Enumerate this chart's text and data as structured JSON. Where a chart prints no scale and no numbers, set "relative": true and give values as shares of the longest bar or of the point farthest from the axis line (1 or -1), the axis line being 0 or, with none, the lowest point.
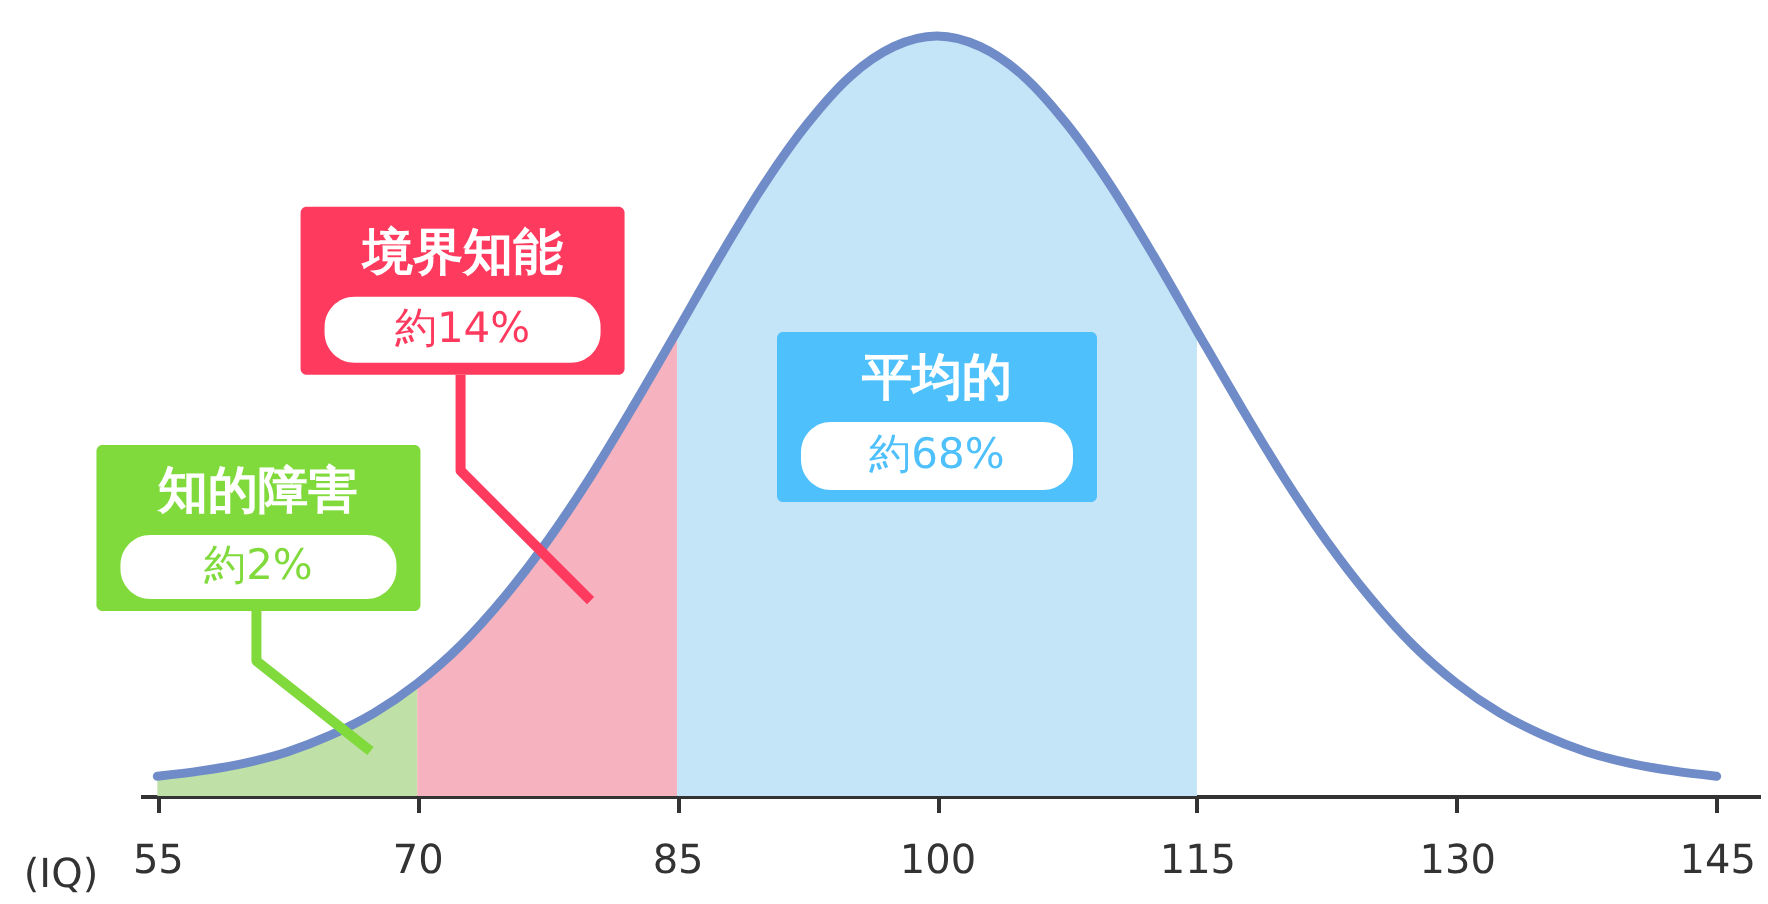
{
  "chart_data": {
    "type": "line",
    "relative": true,
    "xlabel": "(IQ)",
    "xlim": [
      54,
      147.5
    ],
    "xticks": [
      55,
      70,
      85,
      100,
      115,
      130,
      145
    ],
    "series": [
      {
        "type": "area",
        "color": "#bfe0a6",
        "x": [
          55,
          57.5,
          60,
          62.5,
          65,
          67.5,
          70
        ],
        "values": [
          0.026,
          0.033,
          0.043,
          0.058,
          0.08,
          0.109,
          0.148
        ]
      },
      {
        "type": "area",
        "color": "#f6b3bf",
        "x": [
          70,
          72.5,
          75,
          77.5,
          80,
          82.5,
          85
        ],
        "values": [
          0.148,
          0.198,
          0.261,
          0.335,
          0.42,
          0.514,
          0.612
        ]
      },
      {
        "type": "area",
        "color": "#c3e5f7",
        "x": [
          85,
          87.5,
          90,
          92.5,
          95,
          97.5,
          100,
          102.5,
          105,
          107.5,
          110,
          112.5,
          115
        ],
        "values": [
          0.612,
          0.711,
          0.804,
          0.884,
          0.947,
          0.986,
          1,
          0.986,
          0.947,
          0.884,
          0.804,
          0.711,
          0.612
        ]
      },
      {
        "color": "#6f8cc8",
        "x": [
          55,
          57.5,
          60,
          62.5,
          65,
          67.5,
          70,
          72.5,
          75,
          77.5,
          80,
          82.5,
          85,
          87.5,
          90,
          92.5,
          95,
          97.5,
          100,
          102.5,
          105,
          107.5,
          110,
          112.5,
          115,
          117.5,
          120,
          122.5,
          125,
          127.5,
          130,
          132.5,
          135,
          137.5,
          140,
          142.5,
          145
        ],
        "values": [
          0.026,
          0.033,
          0.043,
          0.058,
          0.08,
          0.109,
          0.148,
          0.198,
          0.261,
          0.335,
          0.42,
          0.514,
          0.612,
          0.711,
          0.804,
          0.884,
          0.947,
          0.986,
          1,
          0.986,
          0.947,
          0.884,
          0.804,
          0.711,
          0.612,
          0.514,
          0.42,
          0.335,
          0.261,
          0.198,
          0.148,
          0.109,
          0.08,
          0.058,
          0.043,
          0.033,
          0.026
        ]
      }
    ],
    "annotations": [
      "知的障害",
      "約2%",
      "境界知能",
      "約14%",
      "平均的",
      "約68%"
    ]
  }
}
